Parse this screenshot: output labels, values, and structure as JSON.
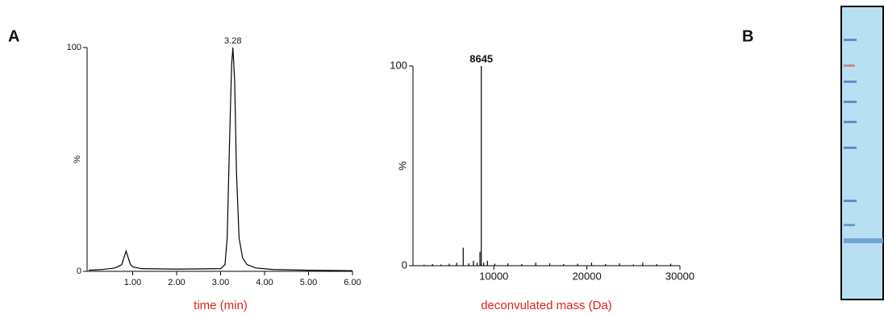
{
  "panel_labels": [
    "A",
    "B"
  ],
  "chart_data": [
    {
      "type": "line",
      "x_label": "time (min)",
      "y_label": "%",
      "color": "#000000",
      "x": [
        0,
        0.3,
        0.6,
        0.75,
        0.8,
        0.85,
        0.9,
        0.95,
        1.0,
        1.2,
        2.0,
        3.0,
        3.1,
        3.15,
        3.2,
        3.25,
        3.28,
        3.32,
        3.36,
        3.42,
        3.5,
        3.6,
        3.8,
        4.2,
        5.0,
        6.0
      ],
      "values": [
        0.5,
        0.8,
        1.5,
        3,
        6,
        9,
        6,
        3,
        2,
        1.2,
        1,
        1.2,
        3,
        15,
        55,
        92,
        100,
        85,
        45,
        15,
        6,
        3,
        1.5,
        0.8,
        0.5,
        0.3
      ],
      "xlim": [
        0,
        6
      ],
      "ylim": [
        0,
        100
      ],
      "xticks": [
        {
          "value": 1,
          "label": "1.00"
        },
        {
          "value": 2,
          "label": "2.00"
        },
        {
          "value": 3,
          "label": "3.00"
        },
        {
          "value": 4,
          "label": "4.00"
        },
        {
          "value": 5,
          "label": "5.00"
        },
        {
          "value": 6,
          "label": "6.00"
        }
      ],
      "yticks": [
        0,
        100
      ],
      "annotations": [
        {
          "text": "3.28",
          "x": 3.28,
          "y": 100
        }
      ]
    },
    {
      "type": "stem",
      "x_label": "deconvulated mass (Da)",
      "y_label": "%",
      "color": "#000000",
      "x": [
        2500,
        3400,
        4300,
        5200,
        6000,
        6700,
        7300,
        7800,
        8200,
        8500,
        8645,
        8900,
        9300,
        10100,
        11500,
        13000,
        14500,
        16000,
        17500,
        19000,
        20500,
        22000,
        23500,
        25000,
        26000,
        27500,
        29000
      ],
      "values": [
        0.5,
        0.8,
        0.6,
        1,
        1.5,
        9,
        1.2,
        2.5,
        1.5,
        7,
        100,
        1.5,
        2.5,
        1,
        1.2,
        0.8,
        1.5,
        1.2,
        0.8,
        1,
        1.5,
        0.8,
        1.2,
        0.6,
        1.5,
        0.8,
        1
      ],
      "xlim": [
        1300,
        30000
      ],
      "ylim": [
        0,
        100
      ],
      "xticks": [
        10000,
        20000,
        30000
      ],
      "yticks": [
        0,
        100
      ],
      "annotations": [
        {
          "text": "8645",
          "x": 8645,
          "y": 100
        }
      ]
    }
  ]
}
